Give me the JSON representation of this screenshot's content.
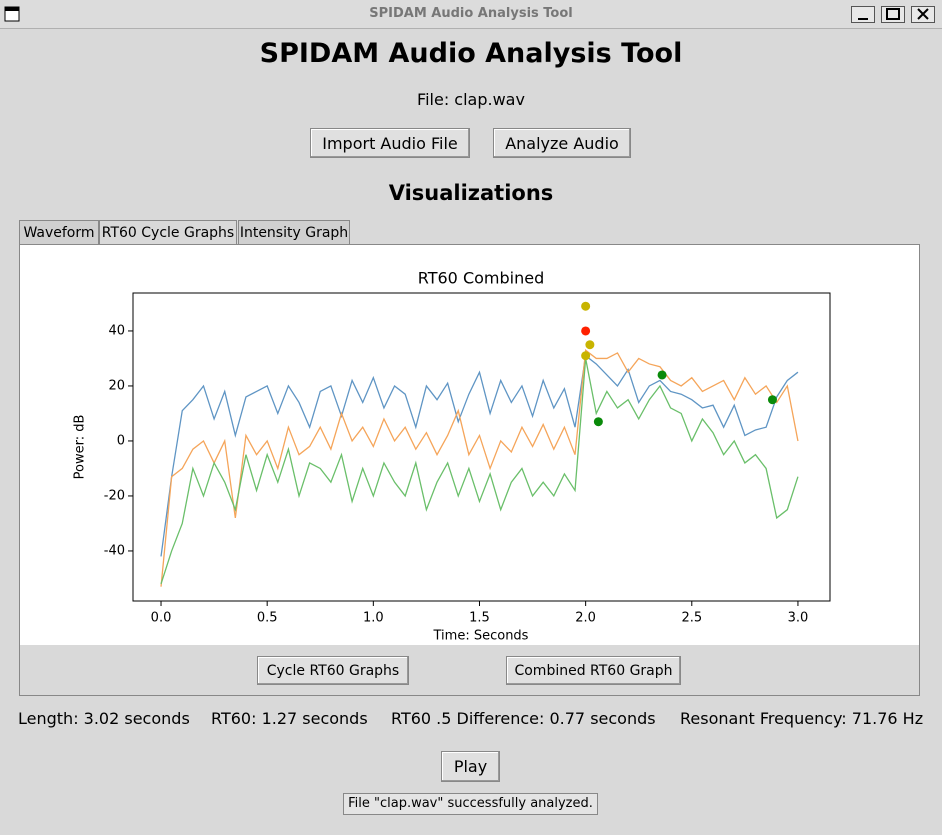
{
  "window_title": "SPIDAM Audio Analysis Tool",
  "heading": "SPIDAM Audio Analysis Tool",
  "file_label": "File: clap.wav",
  "buttons": [
    "Import Audio File",
    "Analyze Audio"
  ],
  "section_title": "Visualizations",
  "tabs": [
    "Waveform",
    "RT60 Cycle Graphs",
    "Intensity Graph"
  ],
  "chart_data": {
    "type": "line",
    "title": "RT60 Combined",
    "xlabel": "Time: Seconds",
    "ylabel": "Power: dB",
    "x": [
      0,
      0.05,
      0.1,
      0.15,
      0.2,
      0.25,
      0.3,
      0.35,
      0.4,
      0.45,
      0.5,
      0.55,
      0.6,
      0.65,
      0.7,
      0.75,
      0.8,
      0.85,
      0.9,
      0.95,
      1.0,
      1.05,
      1.1,
      1.15,
      1.2,
      1.25,
      1.3,
      1.35,
      1.4,
      1.45,
      1.5,
      1.55,
      1.6,
      1.65,
      1.7,
      1.75,
      1.8,
      1.85,
      1.9,
      1.95,
      2.0,
      2.05,
      2.1,
      2.15,
      2.2,
      2.25,
      2.3,
      2.35,
      2.4,
      2.45,
      2.5,
      2.55,
      2.6,
      2.65,
      2.7,
      2.75,
      2.8,
      2.85,
      2.9,
      2.95,
      3.0
    ],
    "series": [
      {
        "color": "#5f95c4",
        "values": [
          -42,
          -13,
          11,
          15,
          20,
          8,
          18,
          2,
          16,
          18,
          20,
          10,
          20,
          14,
          5,
          18,
          20,
          9,
          22,
          14,
          23,
          12,
          20,
          17,
          5,
          20,
          15,
          21,
          7,
          17,
          25,
          10,
          22,
          14,
          20,
          9,
          22,
          12,
          19,
          5,
          31,
          28,
          24,
          20,
          26,
          14,
          20,
          22,
          18,
          17,
          15,
          12,
          13,
          5,
          13,
          2,
          4,
          5,
          16,
          22,
          25
        ]
      },
      {
        "color": "#f5a55a",
        "values": [
          -53,
          -13,
          -10,
          -3,
          0,
          -8,
          0,
          -28,
          2,
          -5,
          0,
          -10,
          5,
          -5,
          -2,
          5,
          -3,
          10,
          0,
          5,
          -2,
          8,
          0,
          5,
          -3,
          3,
          -5,
          2,
          11,
          -5,
          2,
          -10,
          0,
          -4,
          5,
          -2,
          6,
          -3,
          5,
          -5,
          33,
          30,
          30,
          32,
          25,
          30,
          28,
          27,
          22,
          20,
          23,
          18,
          20,
          22,
          15,
          23,
          17,
          20,
          14,
          20,
          0
        ]
      },
      {
        "color": "#6abf6a",
        "values": [
          -52,
          -40,
          -30,
          -10,
          -20,
          -8,
          -15,
          -25,
          -5,
          -18,
          -5,
          -15,
          -3,
          -20,
          -8,
          -10,
          -15,
          -5,
          -22,
          -10,
          -20,
          -8,
          -15,
          -20,
          -8,
          -25,
          -15,
          -8,
          -20,
          -10,
          -22,
          -12,
          -25,
          -15,
          -10,
          -20,
          -15,
          -20,
          -12,
          -18,
          30,
          10,
          18,
          12,
          15,
          8,
          15,
          20,
          12,
          10,
          0,
          8,
          3,
          -5,
          0,
          -8,
          -5,
          -10,
          -28,
          -25,
          -13
        ]
      }
    ],
    "markers": [
      {
        "x": 2.0,
        "y": 49,
        "color": "#c8b400"
      },
      {
        "x": 2.0,
        "y": 40,
        "color": "#ff2000"
      },
      {
        "x": 2.02,
        "y": 35,
        "color": "#c8b400"
      },
      {
        "x": 2.0,
        "y": 31,
        "color": "#c8b400"
      },
      {
        "x": 2.06,
        "y": 7,
        "color": "#0a8a0a"
      },
      {
        "x": 2.36,
        "y": 24,
        "color": "#0a8a0a"
      },
      {
        "x": 2.88,
        "y": 15,
        "color": "#0a8a0a"
      }
    ],
    "xlim": [
      -0.132,
      3.151
    ],
    "ylim": [
      -58.2,
      53.8
    ],
    "xticks": [
      {
        "value": 0,
        "label": "0.0"
      },
      {
        "value": 0.5,
        "label": "0.5"
      },
      {
        "value": 1,
        "label": "1.0"
      },
      {
        "value": 1.5,
        "label": "1.5"
      },
      {
        "value": 2,
        "label": "2.0"
      },
      {
        "value": 2.5,
        "label": "2.5"
      },
      {
        "value": 3,
        "label": "3.0"
      }
    ],
    "yticks": [
      -40,
      -20,
      0,
      20,
      40
    ]
  },
  "graph_buttons": [
    "Cycle RT60 Graphs",
    "Combined RT60 Graph"
  ],
  "stats": [
    "Length: 3.02 seconds",
    "RT60: 1.27 seconds",
    "RT60 .5 Difference: 0.77 seconds",
    "Resonant Frequency: 71.76 Hz"
  ],
  "play_button": "Play",
  "status": "File \"clap.wav\" successfully analyzed."
}
